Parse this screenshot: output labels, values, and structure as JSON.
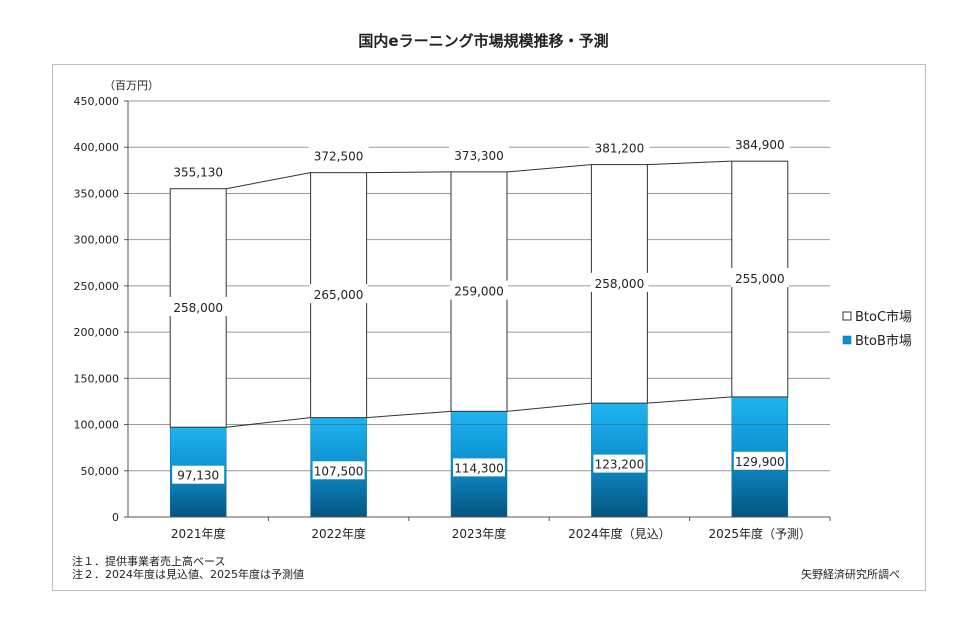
{
  "chart_data": {
    "type": "bar",
    "stacked": true,
    "title": "国内eラーニング市場規模推移・予測",
    "unit_label": "（百万円）",
    "categories": [
      "2021年度",
      "2022年度",
      "2023年度",
      "2024年度（見込）",
      "2025年度（予測）"
    ],
    "series": [
      {
        "name": "BtoB市場",
        "values": [
          97130,
          107500,
          114300,
          123200,
          129900
        ],
        "value_labels": [
          "97,130",
          "107,500",
          "114,300",
          "123,200",
          "129,900"
        ],
        "color": "#1aa7e8"
      },
      {
        "name": "BtoC市場",
        "values": [
          258000,
          265000,
          259000,
          258000,
          255000
        ],
        "value_labels": [
          "258,000",
          "265,000",
          "259,000",
          "258,000",
          "255,000"
        ],
        "color": "#ffffff"
      }
    ],
    "totals": [
      355130,
      372500,
      373300,
      381200,
      384900
    ],
    "total_labels": [
      "355,130",
      "372,500",
      "373,300",
      "381,200",
      "384,900"
    ],
    "ylim": [
      0,
      450000
    ],
    "yticks": [
      0,
      50000,
      100000,
      150000,
      200000,
      250000,
      300000,
      350000,
      400000,
      450000
    ],
    "ytick_labels": [
      "0",
      "50,000",
      "100,000",
      "150,000",
      "200,000",
      "250,000",
      "300,000",
      "350,000",
      "400,000",
      "450,000"
    ],
    "grid": true,
    "legend": [
      {
        "label": "BtoC市場",
        "marker": "□"
      },
      {
        "label": "BtoB市場",
        "marker": "■"
      }
    ],
    "legend_position": "right",
    "notes": [
      "注１．提供事業者売上高ベース",
      "注２．2024年度は見込値、2025年度は予測値"
    ],
    "source": "矢野経済研究所調べ"
  }
}
